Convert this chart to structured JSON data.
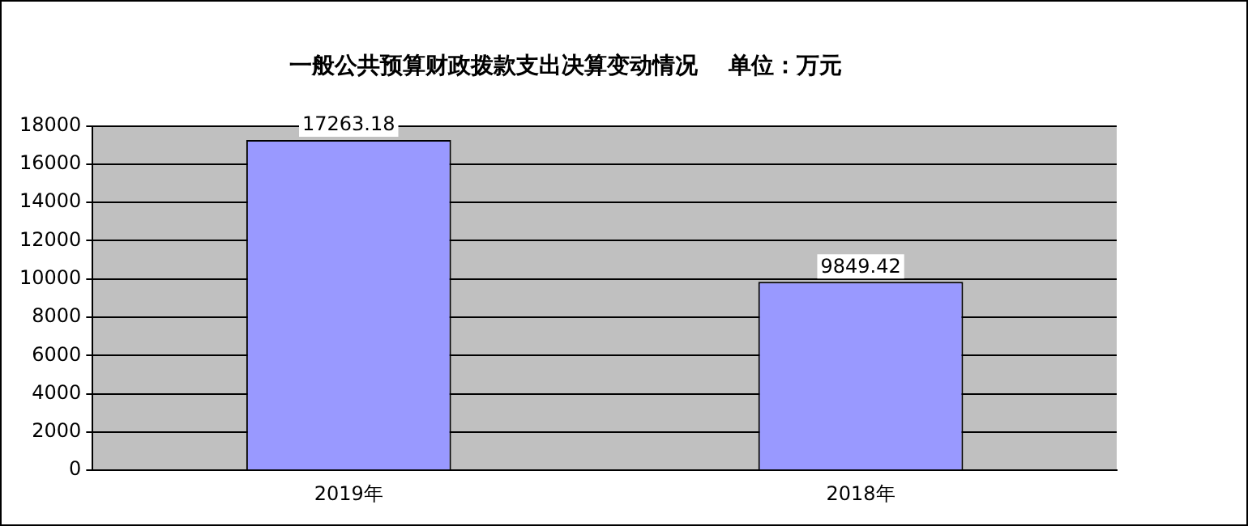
{
  "chart_data": {
    "type": "bar",
    "title": "一般公共预算财政拨款支出决算变动情况    单位：万元",
    "categories": [
      "2019年",
      "2018年"
    ],
    "values": [
      17263.18,
      9849.42
    ],
    "color": "#9999ff",
    "ylim": [
      0,
      18000
    ],
    "yticks": [
      0,
      2000,
      4000,
      6000,
      8000,
      10000,
      12000,
      14000,
      16000,
      18000
    ],
    "grid": "y",
    "legend": false,
    "data_labels": true
  }
}
